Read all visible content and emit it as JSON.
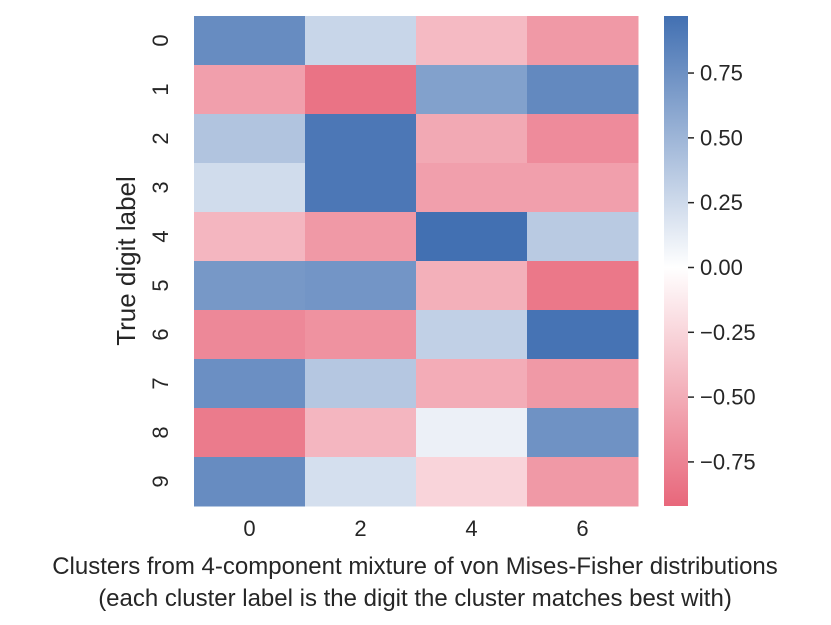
{
  "chart_data": {
    "type": "heatmap",
    "title": "",
    "xlabel": "Clusters from 4-component mixture of von Mises-Fisher distributions",
    "xlabel_line2": "(each cluster label is the digit the cluster matches best with)",
    "ylabel": "True digit label",
    "x_ticks": [
      "0",
      "2",
      "4",
      "6"
    ],
    "y_ticks": [
      "0",
      "1",
      "2",
      "3",
      "4",
      "5",
      "6",
      "7",
      "8",
      "9"
    ],
    "values": [
      [
        0.78,
        0.28,
        -0.42,
        -0.62
      ],
      [
        -0.58,
        -0.85,
        0.64,
        0.8
      ],
      [
        0.4,
        0.92,
        -0.52,
        -0.7
      ],
      [
        0.24,
        0.92,
        -0.58,
        -0.58
      ],
      [
        -0.44,
        -0.62,
        0.97,
        0.36
      ],
      [
        0.7,
        0.72,
        -0.48,
        -0.82
      ],
      [
        -0.72,
        -0.66,
        0.32,
        0.95
      ],
      [
        0.76,
        0.38,
        -0.5,
        -0.62
      ],
      [
        -0.8,
        -0.44,
        0.1,
        0.74
      ],
      [
        0.78,
        0.22,
        -0.26,
        -0.62
      ]
    ],
    "vmin": -0.92,
    "vmax": 0.97,
    "colorbar": {
      "ticks": [
        "0.75",
        "0.50",
        "0.25",
        "0.00",
        "−0.25",
        "−0.50",
        "−0.75"
      ],
      "tick_values": [
        0.75,
        0.5,
        0.25,
        0.0,
        -0.25,
        -0.5,
        -0.75
      ]
    },
    "colors": {
      "negative": "#e8677b",
      "neutral": "#ffffff",
      "positive": "#4270b2"
    }
  }
}
